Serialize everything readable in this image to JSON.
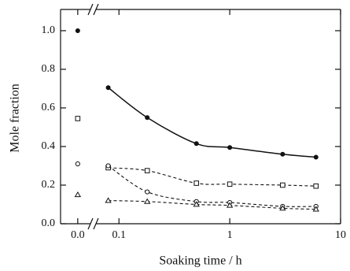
{
  "chart_data": {
    "type": "line",
    "xlabel": "Soaking time / h",
    "ylabel": "Mole fraction",
    "x": [
      0,
      0.08,
      0.18,
      0.5,
      1,
      3,
      6
    ],
    "x_segments": [
      {
        "scale": "linear",
        "xlim": [
          -0.023,
          0.017
        ],
        "xticks": [
          {
            "value": 0,
            "label": "0.0"
          }
        ]
      },
      {
        "scale": "log",
        "xlim": [
          0.062,
          10
        ],
        "xticks": [
          0.1,
          1,
          10
        ]
      }
    ],
    "ylim": [
      0,
      1.11
    ],
    "yticks": [
      {
        "value": 0,
        "label": "0.0"
      },
      0.2,
      0.4,
      0.6,
      0.8,
      {
        "value": 1,
        "label": "1.0"
      }
    ],
    "series": [
      {
        "marker": "filled-circle",
        "line": "solid",
        "color": "#111111",
        "values": [
          1.0,
          0.705,
          0.55,
          0.415,
          0.395,
          0.36,
          0.345
        ]
      },
      {
        "marker": "square",
        "line": "dashed",
        "color": "#111111",
        "values": [
          0.545,
          0.29,
          0.275,
          0.21,
          0.205,
          0.2,
          0.195
        ]
      },
      {
        "marker": "circle",
        "line": "dashed",
        "color": "#111111",
        "values": [
          0.31,
          0.3,
          0.165,
          0.115,
          0.11,
          0.09,
          0.09
        ]
      },
      {
        "marker": "triangle",
        "line": "dashed",
        "color": "#111111",
        "values": [
          0.15,
          0.12,
          0.115,
          0.1,
          0.095,
          0.08,
          0.075
        ]
      }
    ]
  }
}
